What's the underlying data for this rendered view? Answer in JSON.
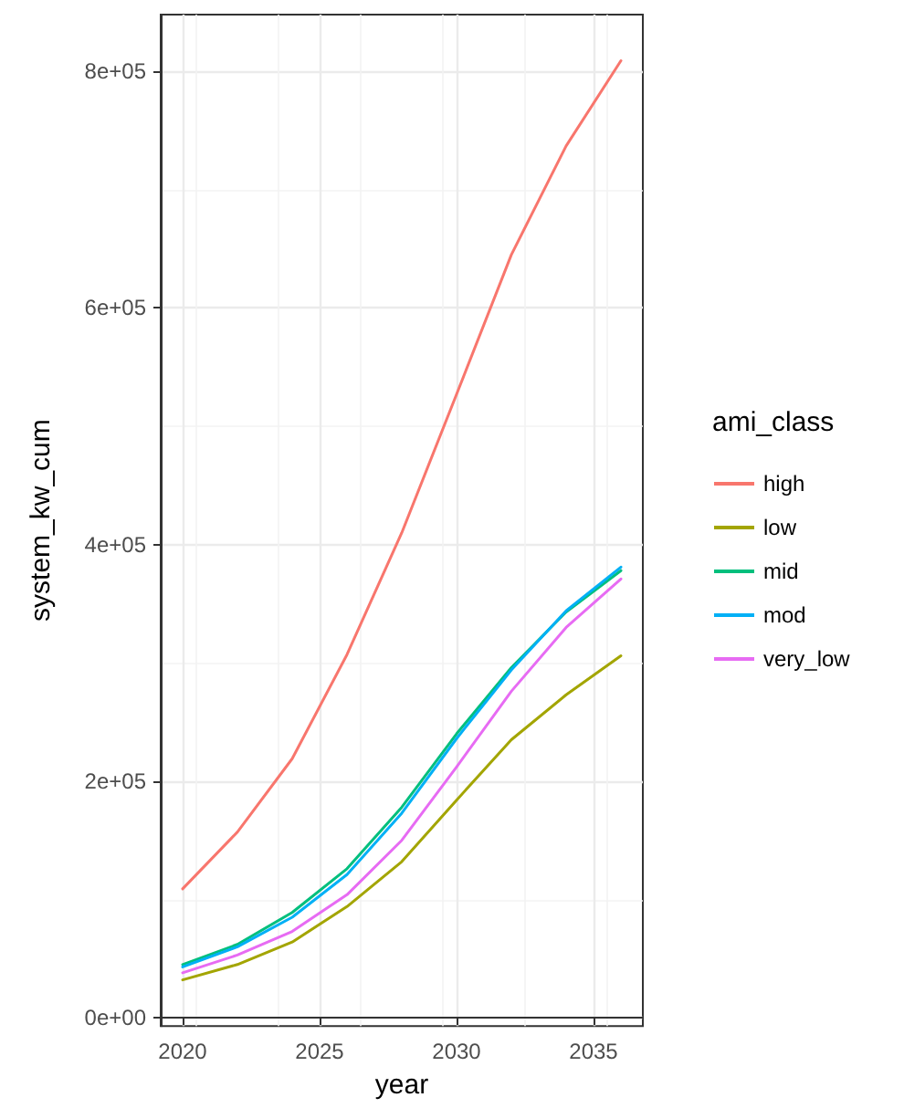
{
  "chart_data": {
    "type": "line",
    "xlabel": "year",
    "ylabel": "system_kw_cum",
    "legend_title": "ami_class",
    "x": [
      2020,
      2022,
      2024,
      2026,
      2028,
      2030,
      2032,
      2034,
      2036
    ],
    "series": [
      {
        "name": "high",
        "color": "#f8766d",
        "values": [
          109000,
          157000,
          219000,
          307000,
          410000,
          527000,
          645000,
          737000,
          809000
        ]
      },
      {
        "name": "low",
        "color": "#a3a500",
        "values": [
          32000,
          45000,
          64000,
          94000,
          132000,
          184000,
          235000,
          273000,
          306000
        ]
      },
      {
        "name": "mid",
        "color": "#00bf7d",
        "values": [
          45000,
          62000,
          89000,
          126000,
          178000,
          240000,
          296000,
          343000,
          378000
        ]
      },
      {
        "name": "mod",
        "color": "#00b0f6",
        "values": [
          43000,
          60000,
          85000,
          121000,
          173000,
          236000,
          294000,
          344000,
          381000
        ]
      },
      {
        "name": "very_low",
        "color": "#e76bf3",
        "values": [
          38000,
          53000,
          73000,
          104000,
          150000,
          212000,
          276000,
          330000,
          371000
        ]
      }
    ],
    "xlim": [
      2019.2,
      2036.8
    ],
    "xticks": [
      2020,
      2025,
      2030,
      2035
    ],
    "ylim": [
      -7000,
      848000
    ],
    "yticks": [
      {
        "value": 0,
        "label": "0e+00"
      },
      {
        "value": 200000,
        "label": "2e+05"
      },
      {
        "value": 400000,
        "label": "4e+05"
      },
      {
        "value": 600000,
        "label": "6e+05"
      },
      {
        "value": 800000,
        "label": "8e+05"
      }
    ],
    "grid": true,
    "legend": "right",
    "marker": "none",
    "line_style": "solid"
  }
}
